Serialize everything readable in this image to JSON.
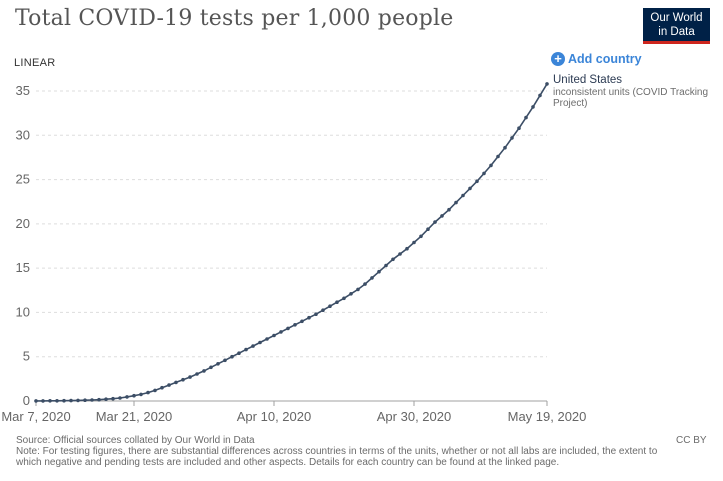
{
  "title": "Total COVID-19 tests per 1,000 people",
  "logo": {
    "line1": "Our World",
    "line2": "in Data"
  },
  "scale_toggle": "LINEAR",
  "add_country_label": "Add country",
  "series_label": {
    "name": "United States",
    "note": "inconsistent units (COVID Tracking Project)"
  },
  "source": "Source: Official sources collated by Our World in Data",
  "note": "Note: For testing figures, there are substantial differences across countries in terms of the units, whether or not all labs are included, the extent to which negative and pending tests are included and other aspects. Details for each country can be found at the linked page.",
  "license": "CC BY",
  "chart_data": {
    "type": "line",
    "title": "Total COVID-19 tests per 1,000 people",
    "xlabel": "",
    "ylabel": "",
    "x_ticks": [
      "Mar 7, 2020",
      "Mar 21, 2020",
      "Apr 10, 2020",
      "Apr 30, 2020",
      "May 19, 2020"
    ],
    "y_ticks": [
      0,
      5,
      10,
      15,
      20,
      25,
      30,
      35
    ],
    "ylim": [
      0,
      37
    ],
    "xlim": [
      "2020-03-07",
      "2020-05-19"
    ],
    "grid": "horizontal dashed",
    "colors": {
      "line": "#3c4e66",
      "axis": "#a0a0a0",
      "grid": "#dddddd",
      "accent": "#3b85d8"
    },
    "series": [
      {
        "name": "United States",
        "x": [
          "2020-03-07",
          "2020-03-08",
          "2020-03-09",
          "2020-03-10",
          "2020-03-11",
          "2020-03-12",
          "2020-03-13",
          "2020-03-14",
          "2020-03-15",
          "2020-03-16",
          "2020-03-17",
          "2020-03-18",
          "2020-03-19",
          "2020-03-20",
          "2020-03-21",
          "2020-03-22",
          "2020-03-23",
          "2020-03-24",
          "2020-03-25",
          "2020-03-26",
          "2020-03-27",
          "2020-03-28",
          "2020-03-29",
          "2020-03-30",
          "2020-03-31",
          "2020-04-01",
          "2020-04-02",
          "2020-04-03",
          "2020-04-04",
          "2020-04-05",
          "2020-04-06",
          "2020-04-07",
          "2020-04-08",
          "2020-04-09",
          "2020-04-10",
          "2020-04-11",
          "2020-04-12",
          "2020-04-13",
          "2020-04-14",
          "2020-04-15",
          "2020-04-16",
          "2020-04-17",
          "2020-04-18",
          "2020-04-19",
          "2020-04-20",
          "2020-04-21",
          "2020-04-22",
          "2020-04-23",
          "2020-04-24",
          "2020-04-25",
          "2020-04-26",
          "2020-04-27",
          "2020-04-28",
          "2020-04-29",
          "2020-04-30",
          "2020-05-01",
          "2020-05-02",
          "2020-05-03",
          "2020-05-04",
          "2020-05-05",
          "2020-05-06",
          "2020-05-07",
          "2020-05-08",
          "2020-05-09",
          "2020-05-10",
          "2020-05-11",
          "2020-05-12",
          "2020-05-13",
          "2020-05-14",
          "2020-05-15",
          "2020-05-16",
          "2020-05-17",
          "2020-05-18",
          "2020-05-19"
        ],
        "values": [
          0.01,
          0.01,
          0.02,
          0.02,
          0.03,
          0.05,
          0.07,
          0.09,
          0.11,
          0.15,
          0.2,
          0.26,
          0.34,
          0.46,
          0.6,
          0.75,
          0.95,
          1.2,
          1.5,
          1.8,
          2.1,
          2.4,
          2.7,
          3.05,
          3.4,
          3.8,
          4.2,
          4.6,
          5.0,
          5.4,
          5.8,
          6.2,
          6.6,
          7.0,
          7.4,
          7.8,
          8.2,
          8.6,
          9.0,
          9.4,
          9.8,
          10.25,
          10.7,
          11.15,
          11.6,
          12.1,
          12.6,
          13.2,
          13.9,
          14.6,
          15.3,
          16.0,
          16.6,
          17.2,
          17.9,
          18.6,
          19.4,
          20.2,
          20.9,
          21.6,
          22.4,
          23.2,
          24.0,
          24.8,
          25.7,
          26.6,
          27.6,
          28.6,
          29.7,
          30.8,
          32.0,
          33.2,
          34.5,
          35.8
        ]
      }
    ]
  }
}
